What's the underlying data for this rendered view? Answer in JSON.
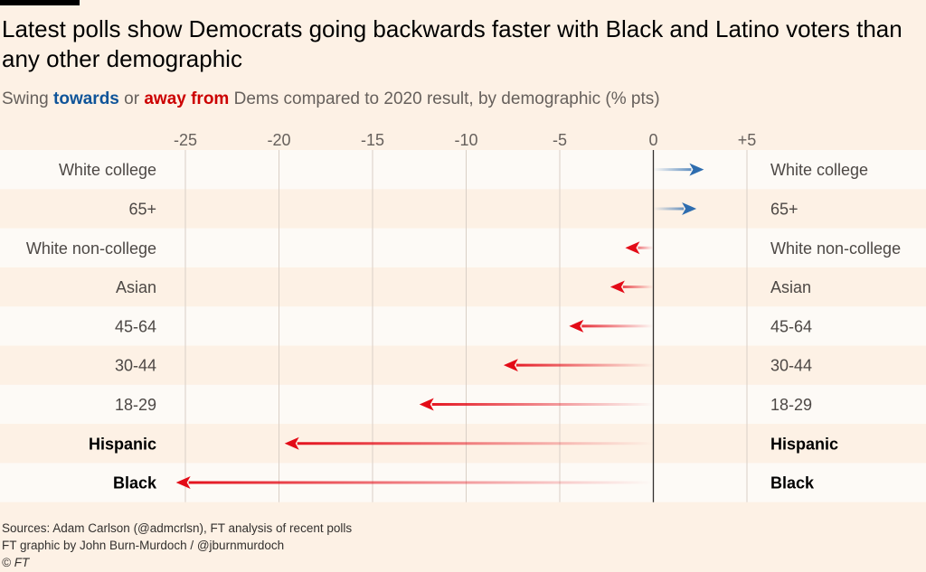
{
  "title": "Latest polls show Democrats going backwards faster with Black and Latino voters than any other demographic",
  "subtitle": {
    "pre": "Swing ",
    "towards": "towards",
    "mid": " or ",
    "away": "away from",
    "post": " Dems compared to 2020 result, by demographic (% pts)"
  },
  "colors": {
    "towards": "#2e6daf",
    "away": "#e30b17",
    "background": "#fdf1e5",
    "band": "#fdfaf6"
  },
  "chart_data": {
    "type": "bar",
    "xlim": [
      -25,
      5
    ],
    "ticks": [
      -25,
      -20,
      -15,
      -10,
      -5,
      0,
      5
    ],
    "tick_labels": [
      "-25",
      "-20",
      "-15",
      "-10",
      "-5",
      "0",
      "+5"
    ],
    "grid": true,
    "categories": [
      "White college",
      "65+",
      "White non-college",
      "Asian",
      "45-64",
      "30-44",
      "18-29",
      "Hispanic",
      "Black"
    ],
    "bold": [
      false,
      false,
      false,
      false,
      false,
      false,
      false,
      true,
      true
    ],
    "values": [
      2.7,
      2.3,
      -1.5,
      -2.3,
      -4.5,
      -8.0,
      -12.5,
      -19.7,
      -25.5
    ]
  },
  "footer": {
    "sources": "Sources: Adam Carlson (@admcrlsn), FT analysis of recent polls",
    "credit": "FT graphic by John Burn-Murdoch / @jburnmurdoch",
    "copyright": "© FT"
  }
}
